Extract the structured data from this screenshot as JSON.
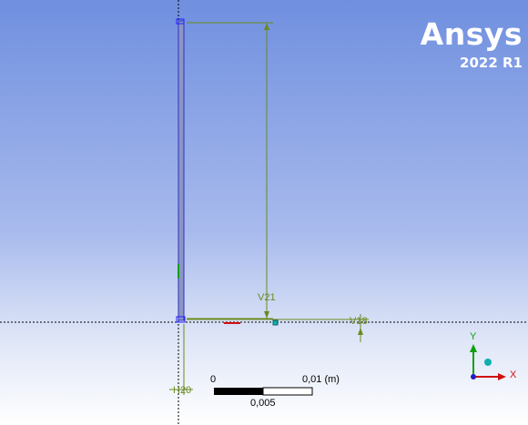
{
  "branding": {
    "name": "Ansys",
    "version": "2022 R1"
  },
  "dimensions": {
    "vertical": "V21",
    "horizontal": "V18",
    "bottom": "H20"
  },
  "scale_bar": {
    "start": "0",
    "mid": "0,005",
    "end": "0,01 (m)"
  },
  "triad": {
    "y_label": "Y",
    "x_label": "X"
  },
  "colors": {
    "dimension": "#6a8a1e",
    "sketch": "#1e1eff",
    "axis_x": "#d01010",
    "axis_y": "#10a010",
    "triad_dot": "#10b0b0"
  }
}
